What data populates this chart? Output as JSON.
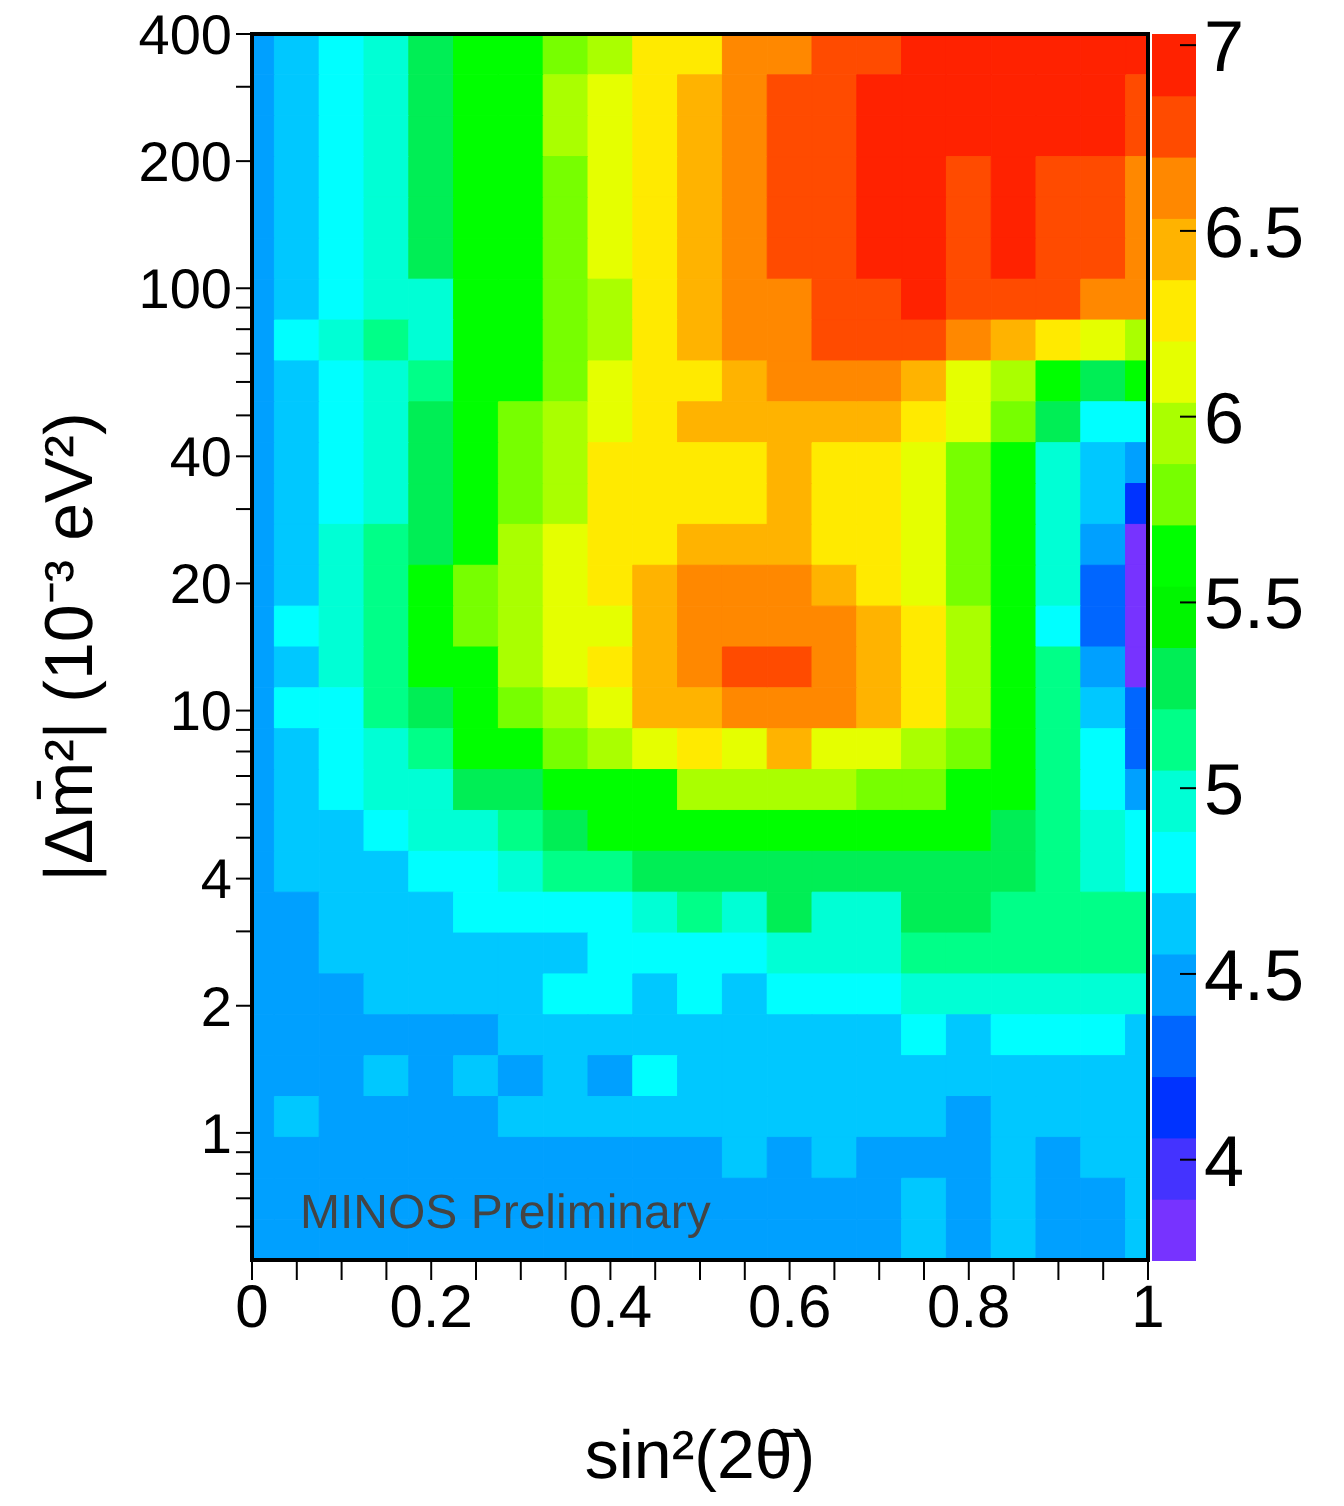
{
  "chart_data": {
    "type": "heatmap",
    "xlabel": "sin²(2θ̄)",
    "ylabel": "|Δm̄²| (10⁻³ eV²)",
    "annotations": [
      "MINOS Preliminary"
    ],
    "log": "y",
    "xlim": [
      0,
      1
    ],
    "ylim": [
      0.5,
      400
    ],
    "xticks": [
      0,
      {
        "value": 0.05,
        "label": null
      },
      {
        "value": 0.1,
        "label": null
      },
      {
        "value": 0.15,
        "label": null
      },
      0.2,
      {
        "value": 0.25,
        "label": null
      },
      {
        "value": 0.3,
        "label": null
      },
      {
        "value": 0.35,
        "label": null
      },
      0.4,
      {
        "value": 0.45,
        "label": null
      },
      {
        "value": 0.5,
        "label": null
      },
      {
        "value": 0.55,
        "label": null
      },
      0.6,
      {
        "value": 0.65,
        "label": null
      },
      {
        "value": 0.7,
        "label": null
      },
      {
        "value": 0.75,
        "label": null
      },
      0.8,
      {
        "value": 0.85,
        "label": null
      },
      {
        "value": 0.9,
        "label": null
      },
      {
        "value": 0.95,
        "label": null
      },
      1
    ],
    "yticks": [
      {
        "value": 0.6,
        "label": null
      },
      {
        "value": 0.7,
        "label": null
      },
      {
        "value": 0.8,
        "label": null
      },
      {
        "value": 0.9,
        "label": null
      },
      1,
      2,
      {
        "value": 3,
        "label": null
      },
      4,
      {
        "value": 5,
        "label": null
      },
      {
        "value": 6,
        "label": null
      },
      {
        "value": 7,
        "label": null
      },
      {
        "value": 8,
        "label": null
      },
      {
        "value": 9,
        "label": null
      },
      10,
      20,
      {
        "value": 30,
        "label": null
      },
      40,
      {
        "value": 50,
        "label": null
      },
      {
        "value": 60,
        "label": null
      },
      {
        "value": 70,
        "label": null
      },
      {
        "value": 80,
        "label": null
      },
      {
        "value": 90,
        "label": null
      },
      100,
      200,
      {
        "value": 300,
        "label": null
      },
      400
    ],
    "clim": [
      3.73,
      7.03
    ],
    "cticks": [
      4,
      4.5,
      5,
      5.5,
      6,
      6.5,
      7
    ],
    "x": [
      0,
      0.05,
      0.1,
      0.15,
      0.2,
      0.25,
      0.3,
      0.35,
      0.4,
      0.45,
      0.5,
      0.55,
      0.6,
      0.65,
      0.7,
      0.75,
      0.8,
      0.85,
      0.9,
      0.95,
      1
    ],
    "cells": [
      [
        4.5,
        4.6,
        4.8,
        5.0,
        5.3,
        5.6,
        5.6,
        5.8,
        6.0,
        6.3,
        6.3,
        6.6,
        6.6,
        6.8,
        6.8,
        6.9,
        6.9,
        6.9,
        6.9,
        6.9,
        6.9
      ],
      [
        4.5,
        4.6,
        4.8,
        5.0,
        5.3,
        5.6,
        5.6,
        6.0,
        6.1,
        6.3,
        6.5,
        6.6,
        6.8,
        6.8,
        6.9,
        6.9,
        6.9,
        6.9,
        6.9,
        6.9,
        6.8
      ],
      [
        4.5,
        4.6,
        4.8,
        5.0,
        5.3,
        5.6,
        5.6,
        6.0,
        6.1,
        6.3,
        6.5,
        6.6,
        6.8,
        6.8,
        6.9,
        6.9,
        6.9,
        6.9,
        6.9,
        6.9,
        6.8
      ],
      [
        4.5,
        4.6,
        4.8,
        5.0,
        5.3,
        5.6,
        5.6,
        5.8,
        6.1,
        6.3,
        6.5,
        6.6,
        6.8,
        6.8,
        6.9,
        6.9,
        6.8,
        6.9,
        6.8,
        6.8,
        6.6
      ],
      [
        4.5,
        4.6,
        4.8,
        5.0,
        5.3,
        5.6,
        5.6,
        5.8,
        6.1,
        6.3,
        6.5,
        6.6,
        6.8,
        6.8,
        6.9,
        6.9,
        6.8,
        6.9,
        6.8,
        6.8,
        6.6
      ],
      [
        4.5,
        4.6,
        4.8,
        5.0,
        5.3,
        5.6,
        5.6,
        5.8,
        6.1,
        6.3,
        6.5,
        6.6,
        6.8,
        6.8,
        6.9,
        6.9,
        6.8,
        6.9,
        6.8,
        6.8,
        6.6
      ],
      [
        4.5,
        4.6,
        4.8,
        5.0,
        5.0,
        5.6,
        5.6,
        5.8,
        6.0,
        6.3,
        6.5,
        6.6,
        6.6,
        6.8,
        6.8,
        6.9,
        6.8,
        6.8,
        6.8,
        6.6,
        6.6
      ],
      [
        4.5,
        4.8,
        5.0,
        5.1,
        5.0,
        5.6,
        5.6,
        5.8,
        6.0,
        6.3,
        6.5,
        6.6,
        6.6,
        6.8,
        6.8,
        6.8,
        6.6,
        6.5,
        6.3,
        6.1,
        6.0
      ],
      [
        4.5,
        4.6,
        4.8,
        5.0,
        5.1,
        5.6,
        5.6,
        5.8,
        6.1,
        6.3,
        6.3,
        6.5,
        6.6,
        6.6,
        6.6,
        6.5,
        6.1,
        6.0,
        5.6,
        5.3,
        5.6
      ],
      [
        4.5,
        4.6,
        4.8,
        5.0,
        5.3,
        5.6,
        5.8,
        6.0,
        6.1,
        6.3,
        6.5,
        6.5,
        6.5,
        6.5,
        6.5,
        6.3,
        6.1,
        5.8,
        5.3,
        4.8,
        4.8
      ],
      [
        4.5,
        4.6,
        4.8,
        5.0,
        5.3,
        5.6,
        5.8,
        6.0,
        6.3,
        6.3,
        6.3,
        6.3,
        6.5,
        6.3,
        6.3,
        6.1,
        5.8,
        5.6,
        5.0,
        4.6,
        4.5
      ],
      [
        4.5,
        4.6,
        4.8,
        5.0,
        5.3,
        5.6,
        5.8,
        6.0,
        6.3,
        6.3,
        6.3,
        6.3,
        6.5,
        6.3,
        6.3,
        6.1,
        5.8,
        5.6,
        5.0,
        4.6,
        4.1
      ],
      [
        4.5,
        4.6,
        5.0,
        5.1,
        5.3,
        5.6,
        6.0,
        6.1,
        6.3,
        6.3,
        6.5,
        6.5,
        6.5,
        6.3,
        6.3,
        6.1,
        5.8,
        5.6,
        5.0,
        4.5,
        3.8
      ],
      [
        4.5,
        4.6,
        5.0,
        5.1,
        5.6,
        5.8,
        6.0,
        6.1,
        6.3,
        6.5,
        6.6,
        6.6,
        6.6,
        6.5,
        6.3,
        6.1,
        5.8,
        5.6,
        5.0,
        4.3,
        3.8
      ],
      [
        4.5,
        4.8,
        5.0,
        5.1,
        5.6,
        5.8,
        6.0,
        6.1,
        6.1,
        6.5,
        6.6,
        6.6,
        6.6,
        6.6,
        6.5,
        6.3,
        6.0,
        5.6,
        4.8,
        4.3,
        3.8
      ],
      [
        4.5,
        4.6,
        5.0,
        5.1,
        5.6,
        5.6,
        6.0,
        6.1,
        6.3,
        6.5,
        6.6,
        6.8,
        6.8,
        6.6,
        6.5,
        6.3,
        6.0,
        5.6,
        5.1,
        4.5,
        3.8
      ],
      [
        4.5,
        4.8,
        4.8,
        5.1,
        5.3,
        5.6,
        5.8,
        6.0,
        6.1,
        6.5,
        6.5,
        6.6,
        6.6,
        6.6,
        6.5,
        6.3,
        6.0,
        5.6,
        5.1,
        4.6,
        4.3
      ],
      [
        4.5,
        4.6,
        4.8,
        5.0,
        5.1,
        5.6,
        5.6,
        5.8,
        6.0,
        6.1,
        6.3,
        6.1,
        6.5,
        6.1,
        6.1,
        6.0,
        5.8,
        5.6,
        5.1,
        4.8,
        4.3
      ],
      [
        4.5,
        4.6,
        4.8,
        5.0,
        5.0,
        5.3,
        5.3,
        5.6,
        5.6,
        5.6,
        6.0,
        6.0,
        6.0,
        6.0,
        5.8,
        5.8,
        5.6,
        5.6,
        5.1,
        4.8,
        4.5
      ],
      [
        4.5,
        4.6,
        4.6,
        4.8,
        5.0,
        5.0,
        5.1,
        5.3,
        5.6,
        5.6,
        5.6,
        5.6,
        5.6,
        5.6,
        5.6,
        5.6,
        5.6,
        5.3,
        5.1,
        5.0,
        4.8
      ],
      [
        4.5,
        4.6,
        4.6,
        4.6,
        4.8,
        4.8,
        5.0,
        5.1,
        5.1,
        5.3,
        5.3,
        5.3,
        5.3,
        5.3,
        5.3,
        5.3,
        5.3,
        5.3,
        5.1,
        5.0,
        4.8
      ],
      [
        4.5,
        4.5,
        4.6,
        4.6,
        4.6,
        4.8,
        4.8,
        4.8,
        4.8,
        5.0,
        5.1,
        5.0,
        5.3,
        5.0,
        5.0,
        5.3,
        5.3,
        5.1,
        5.1,
        5.1,
        5.1
      ],
      [
        4.5,
        4.5,
        4.6,
        4.6,
        4.6,
        4.6,
        4.6,
        4.6,
        4.8,
        4.8,
        4.8,
        4.8,
        5.0,
        5.0,
        5.0,
        5.1,
        5.1,
        5.1,
        5.1,
        5.1,
        5.1
      ],
      [
        4.5,
        4.5,
        4.5,
        4.6,
        4.6,
        4.6,
        4.6,
        4.8,
        4.8,
        4.6,
        4.8,
        4.6,
        4.8,
        4.8,
        4.8,
        5.0,
        5.0,
        5.0,
        5.0,
        5.0,
        5.0
      ],
      [
        4.5,
        4.5,
        4.5,
        4.5,
        4.5,
        4.5,
        4.6,
        4.6,
        4.6,
        4.6,
        4.6,
        4.6,
        4.6,
        4.6,
        4.6,
        4.8,
        4.6,
        4.8,
        4.8,
        4.8,
        4.6
      ],
      [
        4.5,
        4.5,
        4.5,
        4.6,
        4.5,
        4.6,
        4.5,
        4.6,
        4.5,
        4.8,
        4.6,
        4.6,
        4.6,
        4.6,
        4.6,
        4.6,
        4.6,
        4.6,
        4.6,
        4.6,
        4.6
      ],
      [
        4.5,
        4.6,
        4.5,
        4.5,
        4.5,
        4.5,
        4.6,
        4.6,
        4.6,
        4.6,
        4.6,
        4.6,
        4.6,
        4.6,
        4.6,
        4.6,
        4.5,
        4.6,
        4.6,
        4.6,
        4.6
      ],
      [
        4.5,
        4.5,
        4.5,
        4.5,
        4.5,
        4.5,
        4.5,
        4.5,
        4.5,
        4.5,
        4.5,
        4.6,
        4.5,
        4.6,
        4.5,
        4.5,
        4.5,
        4.6,
        4.5,
        4.6,
        4.6
      ],
      [
        4.5,
        4.5,
        4.5,
        4.5,
        4.5,
        4.5,
        4.5,
        4.5,
        4.5,
        4.5,
        4.5,
        4.5,
        4.5,
        4.5,
        4.5,
        4.6,
        4.5,
        4.6,
        4.5,
        4.5,
        4.6
      ],
      [
        4.5,
        4.5,
        4.5,
        4.5,
        4.5,
        4.5,
        4.5,
        4.5,
        4.5,
        4.5,
        4.5,
        4.5,
        4.5,
        4.5,
        4.5,
        4.6,
        4.5,
        4.6,
        4.5,
        4.5,
        4.6
      ]
    ]
  }
}
